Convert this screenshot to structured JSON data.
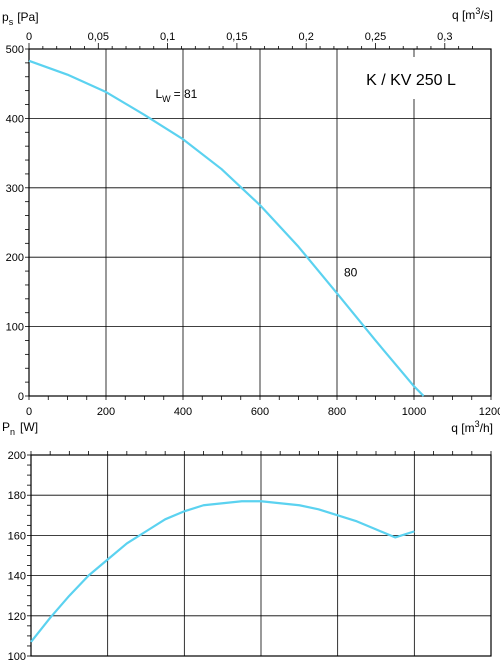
{
  "colors": {
    "curve": "#5bd2f0",
    "grid": "#000000",
    "background": "#ffffff"
  },
  "chart_data": [
    {
      "type": "line",
      "panel": "pressure",
      "ylabel": {
        "main": "p",
        "sub": "s",
        "unit": "[Pa]"
      },
      "top_axis_label": {
        "main": "q [m",
        "sup": "3",
        "end": "/s]"
      },
      "xlim": [
        0,
        1200
      ],
      "ylim": [
        0,
        500
      ],
      "x_ticks": [
        "0",
        "200",
        "400",
        "600",
        "800",
        "1000",
        "1200"
      ],
      "y_ticks": [
        "0",
        "100",
        "200",
        "300",
        "400",
        "500"
      ],
      "top_ticks": [
        "0",
        "0,05",
        "0,1",
        "0,15",
        "0,2",
        "0,25",
        "0,3"
      ],
      "top_tick_values": [
        0,
        0.05,
        0.1,
        0.15,
        0.2,
        0.25,
        0.3
      ],
      "model_label": "K / KV 250 L",
      "annotations": [
        {
          "main": "L",
          "sub": "W",
          "end": "= 81",
          "x": 370,
          "y": 418
        },
        {
          "main": "80",
          "x": 870,
          "y": 135
        }
      ],
      "series": [
        {
          "x": [
            0,
            100,
            200,
            300,
            400,
            500,
            600,
            700,
            800,
            900,
            1000,
            1025
          ],
          "y": [
            483,
            463,
            438,
            405,
            370,
            327,
            275,
            215,
            148,
            80,
            14,
            0
          ]
        }
      ]
    },
    {
      "type": "line",
      "panel": "power",
      "ylabel": {
        "main": "P",
        "sub": "n",
        "unit": "[W]"
      },
      "xlabel": {
        "main": "q [m",
        "sup": "3",
        "end": "/h]"
      },
      "xlim": [
        0,
        1200
      ],
      "ylim": [
        100,
        200
      ],
      "y_ticks": [
        "100",
        "120",
        "140",
        "160",
        "180",
        "200"
      ],
      "series": [
        {
          "x": [
            0,
            50,
            100,
            150,
            200,
            250,
            300,
            350,
            400,
            450,
            500,
            550,
            600,
            650,
            700,
            750,
            800,
            850,
            900,
            950,
            1000
          ],
          "y": [
            107,
            119,
            130,
            140,
            148,
            156,
            162,
            168,
            172,
            175,
            176,
            177,
            177,
            176,
            175,
            173,
            170,
            167,
            163,
            159,
            162
          ]
        }
      ]
    }
  ]
}
